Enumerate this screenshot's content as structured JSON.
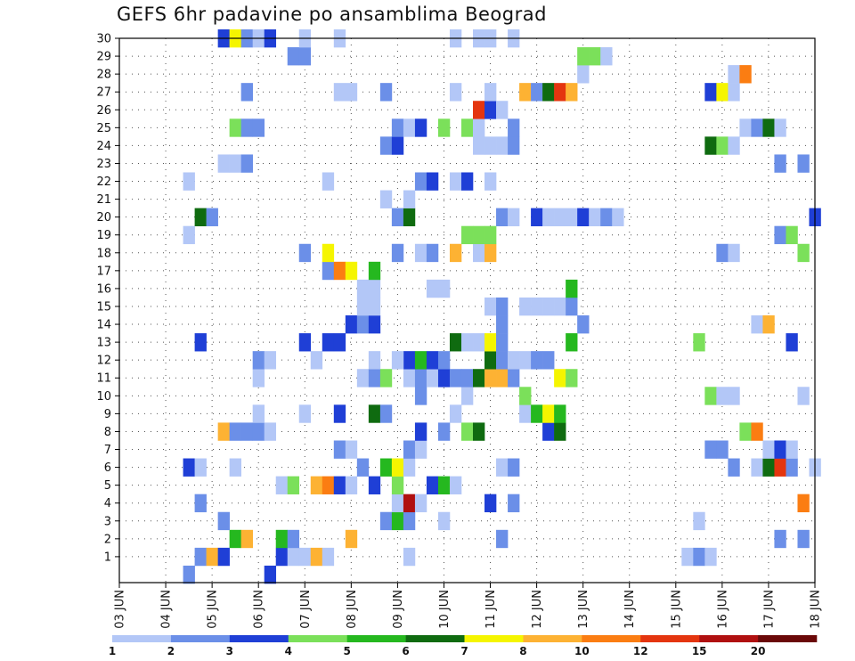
{
  "chart_data": {
    "type": "heatmap",
    "title": "GEFS 6hr padavine po ansamblima Beograd",
    "x_tick_labels": [
      "03 JUN",
      "04 JUN",
      "05 JUN",
      "06 JUN",
      "07 JUN",
      "08 JUN",
      "09 JUN",
      "10 JUN",
      "11 JUN",
      "12 JUN",
      "13 JUN",
      "14 JUN",
      "15 JUN",
      "16 JUN",
      "17 JUN",
      "18 JUN"
    ],
    "y_tick_labels": [
      "1",
      "2",
      "3",
      "4",
      "5",
      "6",
      "7",
      "8",
      "9",
      "10",
      "11",
      "12",
      "13",
      "14",
      "15",
      "16",
      "17",
      "18",
      "19",
      "20",
      "21",
      "22",
      "23",
      "24",
      "25",
      "26",
      "27",
      "28",
      "29",
      "30"
    ],
    "xlim": [
      0,
      60
    ],
    "ylim": [
      0,
      30
    ],
    "grid": true,
    "colorbar": {
      "labels": [
        "1",
        "2",
        "3",
        "4",
        "5",
        "6",
        "7",
        "8",
        "10",
        "12",
        "15",
        "20"
      ],
      "colors": [
        "#b3c7f7",
        "#6b8fe8",
        "#1f3fd6",
        "#7be05a",
        "#25b81f",
        "#0f6b10",
        "#f5f500",
        "#fdb233",
        "#fb7d12",
        "#e4350f",
        "#b01010",
        "#6a0808"
      ]
    },
    "cells_note": "x = 6-hour step from 03 JUN 00z, y = ensemble member, c = colorbar class index (0..11)",
    "cells": [
      {
        "x": 7,
        "y": 1,
        "c": 1
      },
      {
        "x": 8,
        "y": 1,
        "c": 7
      },
      {
        "x": 9,
        "y": 1,
        "c": 2
      },
      {
        "x": 14,
        "y": 1,
        "c": 2
      },
      {
        "x": 15,
        "y": 1,
        "c": 0
      },
      {
        "x": 16,
        "y": 1,
        "c": 0
      },
      {
        "x": 17,
        "y": 1,
        "c": 7
      },
      {
        "x": 18,
        "y": 1,
        "c": 0
      },
      {
        "x": 25,
        "y": 1,
        "c": 0
      },
      {
        "x": 49,
        "y": 1,
        "c": 0
      },
      {
        "x": 50,
        "y": 1,
        "c": 1
      },
      {
        "x": 51,
        "y": 1,
        "c": 0
      },
      {
        "x": 6,
        "y": 0,
        "c": 1
      },
      {
        "x": 13,
        "y": 0,
        "c": 2
      },
      {
        "x": 10,
        "y": 2,
        "c": 4
      },
      {
        "x": 11,
        "y": 2,
        "c": 7
      },
      {
        "x": 14,
        "y": 2,
        "c": 4
      },
      {
        "x": 15,
        "y": 2,
        "c": 1
      },
      {
        "x": 20,
        "y": 2,
        "c": 7
      },
      {
        "x": 33,
        "y": 2,
        "c": 1
      },
      {
        "x": 57,
        "y": 2,
        "c": 1
      },
      {
        "x": 59,
        "y": 2,
        "c": 1
      },
      {
        "x": 9,
        "y": 3,
        "c": 1
      },
      {
        "x": 23,
        "y": 3,
        "c": 1
      },
      {
        "x": 24,
        "y": 3,
        "c": 4
      },
      {
        "x": 25,
        "y": 3,
        "c": 1
      },
      {
        "x": 28,
        "y": 3,
        "c": 0
      },
      {
        "x": 50,
        "y": 3,
        "c": 0
      },
      {
        "x": 7,
        "y": 4,
        "c": 1
      },
      {
        "x": 24,
        "y": 4,
        "c": 0
      },
      {
        "x": 25,
        "y": 4,
        "c": 10
      },
      {
        "x": 26,
        "y": 4,
        "c": 0
      },
      {
        "x": 32,
        "y": 4,
        "c": 2
      },
      {
        "x": 34,
        "y": 4,
        "c": 1
      },
      {
        "x": 59,
        "y": 4,
        "c": 8
      },
      {
        "x": 14,
        "y": 5,
        "c": 0
      },
      {
        "x": 15,
        "y": 5,
        "c": 3
      },
      {
        "x": 17,
        "y": 5,
        "c": 7
      },
      {
        "x": 18,
        "y": 5,
        "c": 8
      },
      {
        "x": 19,
        "y": 5,
        "c": 2
      },
      {
        "x": 20,
        "y": 5,
        "c": 0
      },
      {
        "x": 22,
        "y": 5,
        "c": 2
      },
      {
        "x": 24,
        "y": 5,
        "c": 3
      },
      {
        "x": 27,
        "y": 5,
        "c": 2
      },
      {
        "x": 28,
        "y": 5,
        "c": 4
      },
      {
        "x": 29,
        "y": 5,
        "c": 0
      },
      {
        "x": 6,
        "y": 6,
        "c": 2
      },
      {
        "x": 7,
        "y": 6,
        "c": 0
      },
      {
        "x": 10,
        "y": 6,
        "c": 0
      },
      {
        "x": 21,
        "y": 6,
        "c": 1
      },
      {
        "x": 23,
        "y": 6,
        "c": 4
      },
      {
        "x": 24,
        "y": 6,
        "c": 6
      },
      {
        "x": 25,
        "y": 6,
        "c": 0
      },
      {
        "x": 33,
        "y": 6,
        "c": 0
      },
      {
        "x": 34,
        "y": 6,
        "c": 1
      },
      {
        "x": 53,
        "y": 6,
        "c": 1
      },
      {
        "x": 55,
        "y": 6,
        "c": 0
      },
      {
        "x": 56,
        "y": 6,
        "c": 5
      },
      {
        "x": 57,
        "y": 6,
        "c": 9
      },
      {
        "x": 58,
        "y": 6,
        "c": 1
      },
      {
        "x": 60,
        "y": 6,
        "c": 0
      },
      {
        "x": 19,
        "y": 7,
        "c": 1
      },
      {
        "x": 20,
        "y": 7,
        "c": 0
      },
      {
        "x": 25,
        "y": 7,
        "c": 1
      },
      {
        "x": 26,
        "y": 7,
        "c": 0
      },
      {
        "x": 51,
        "y": 7,
        "c": 1
      },
      {
        "x": 52,
        "y": 7,
        "c": 1
      },
      {
        "x": 56,
        "y": 7,
        "c": 0
      },
      {
        "x": 57,
        "y": 7,
        "c": 2
      },
      {
        "x": 58,
        "y": 7,
        "c": 0
      },
      {
        "x": 9,
        "y": 8,
        "c": 7
      },
      {
        "x": 10,
        "y": 8,
        "c": 1
      },
      {
        "x": 11,
        "y": 8,
        "c": 1
      },
      {
        "x": 12,
        "y": 8,
        "c": 1
      },
      {
        "x": 13,
        "y": 8,
        "c": 0
      },
      {
        "x": 26,
        "y": 8,
        "c": 2
      },
      {
        "x": 28,
        "y": 8,
        "c": 1
      },
      {
        "x": 30,
        "y": 8,
        "c": 3
      },
      {
        "x": 31,
        "y": 8,
        "c": 5
      },
      {
        "x": 37,
        "y": 8,
        "c": 2
      },
      {
        "x": 38,
        "y": 8,
        "c": 5
      },
      {
        "x": 54,
        "y": 8,
        "c": 3
      },
      {
        "x": 55,
        "y": 8,
        "c": 8
      },
      {
        "x": 12,
        "y": 9,
        "c": 0
      },
      {
        "x": 16,
        "y": 9,
        "c": 0
      },
      {
        "x": 19,
        "y": 9,
        "c": 2
      },
      {
        "x": 22,
        "y": 9,
        "c": 5
      },
      {
        "x": 23,
        "y": 9,
        "c": 1
      },
      {
        "x": 29,
        "y": 9,
        "c": 0
      },
      {
        "x": 35,
        "y": 9,
        "c": 0
      },
      {
        "x": 36,
        "y": 9,
        "c": 4
      },
      {
        "x": 37,
        "y": 9,
        "c": 6
      },
      {
        "x": 38,
        "y": 9,
        "c": 4
      },
      {
        "x": 26,
        "y": 10,
        "c": 1
      },
      {
        "x": 30,
        "y": 10,
        "c": 0
      },
      {
        "x": 35,
        "y": 10,
        "c": 3
      },
      {
        "x": 51,
        "y": 10,
        "c": 3
      },
      {
        "x": 52,
        "y": 10,
        "c": 0
      },
      {
        "x": 53,
        "y": 10,
        "c": 0
      },
      {
        "x": 59,
        "y": 10,
        "c": 0
      },
      {
        "x": 12,
        "y": 11,
        "c": 0
      },
      {
        "x": 21,
        "y": 11,
        "c": 0
      },
      {
        "x": 22,
        "y": 11,
        "c": 1
      },
      {
        "x": 23,
        "y": 11,
        "c": 3
      },
      {
        "x": 25,
        "y": 11,
        "c": 0
      },
      {
        "x": 26,
        "y": 11,
        "c": 1
      },
      {
        "x": 27,
        "y": 11,
        "c": 0
      },
      {
        "x": 28,
        "y": 11,
        "c": 2
      },
      {
        "x": 29,
        "y": 11,
        "c": 1
      },
      {
        "x": 30,
        "y": 11,
        "c": 1
      },
      {
        "x": 31,
        "y": 11,
        "c": 5
      },
      {
        "x": 32,
        "y": 11,
        "c": 7
      },
      {
        "x": 33,
        "y": 11,
        "c": 7
      },
      {
        "x": 34,
        "y": 11,
        "c": 1
      },
      {
        "x": 38,
        "y": 11,
        "c": 6
      },
      {
        "x": 39,
        "y": 11,
        "c": 3
      },
      {
        "x": 12,
        "y": 12,
        "c": 1
      },
      {
        "x": 13,
        "y": 12,
        "c": 0
      },
      {
        "x": 25,
        "y": 12,
        "c": 2
      },
      {
        "x": 26,
        "y": 12,
        "c": 4
      },
      {
        "x": 27,
        "y": 12,
        "c": 2
      },
      {
        "x": 28,
        "y": 12,
        "c": 1
      },
      {
        "x": 32,
        "y": 12,
        "c": 5
      },
      {
        "x": 33,
        "y": 12,
        "c": 1
      },
      {
        "x": 34,
        "y": 12,
        "c": 0
      },
      {
        "x": 35,
        "y": 12,
        "c": 0
      },
      {
        "x": 36,
        "y": 12,
        "c": 1
      },
      {
        "x": 37,
        "y": 12,
        "c": 1
      },
      {
        "x": 17,
        "y": 12,
        "c": 0
      },
      {
        "x": 22,
        "y": 12,
        "c": 0
      },
      {
        "x": 24,
        "y": 12,
        "c": 0
      },
      {
        "x": 7,
        "y": 13,
        "c": 2
      },
      {
        "x": 16,
        "y": 13,
        "c": 2
      },
      {
        "x": 18,
        "y": 13,
        "c": 2
      },
      {
        "x": 19,
        "y": 13,
        "c": 2
      },
      {
        "x": 29,
        "y": 13,
        "c": 5
      },
      {
        "x": 30,
        "y": 13,
        "c": 0
      },
      {
        "x": 31,
        "y": 13,
        "c": 0
      },
      {
        "x": 32,
        "y": 13,
        "c": 6
      },
      {
        "x": 33,
        "y": 13,
        "c": 1
      },
      {
        "x": 39,
        "y": 13,
        "c": 4
      },
      {
        "x": 50,
        "y": 13,
        "c": 3
      },
      {
        "x": 58,
        "y": 13,
        "c": 2
      },
      {
        "x": 20,
        "y": 14,
        "c": 2
      },
      {
        "x": 21,
        "y": 14,
        "c": 1
      },
      {
        "x": 22,
        "y": 14,
        "c": 2
      },
      {
        "x": 33,
        "y": 14,
        "c": 1
      },
      {
        "x": 40,
        "y": 14,
        "c": 1
      },
      {
        "x": 55,
        "y": 14,
        "c": 0
      },
      {
        "x": 56,
        "y": 14,
        "c": 7
      },
      {
        "x": 21,
        "y": 15,
        "c": 0
      },
      {
        "x": 22,
        "y": 15,
        "c": 0
      },
      {
        "x": 32,
        "y": 15,
        "c": 0
      },
      {
        "x": 33,
        "y": 15,
        "c": 1
      },
      {
        "x": 35,
        "y": 15,
        "c": 0
      },
      {
        "x": 36,
        "y": 15,
        "c": 0
      },
      {
        "x": 37,
        "y": 15,
        "c": 0
      },
      {
        "x": 38,
        "y": 15,
        "c": 0
      },
      {
        "x": 39,
        "y": 15,
        "c": 1
      },
      {
        "x": 21,
        "y": 16,
        "c": 0
      },
      {
        "x": 22,
        "y": 16,
        "c": 0
      },
      {
        "x": 27,
        "y": 16,
        "c": 0
      },
      {
        "x": 28,
        "y": 16,
        "c": 0
      },
      {
        "x": 39,
        "y": 16,
        "c": 4
      },
      {
        "x": 18,
        "y": 17,
        "c": 1
      },
      {
        "x": 19,
        "y": 17,
        "c": 8
      },
      {
        "x": 20,
        "y": 17,
        "c": 6
      },
      {
        "x": 22,
        "y": 17,
        "c": 4
      },
      {
        "x": 16,
        "y": 18,
        "c": 1
      },
      {
        "x": 18,
        "y": 18,
        "c": 6
      },
      {
        "x": 24,
        "y": 18,
        "c": 1
      },
      {
        "x": 26,
        "y": 18,
        "c": 0
      },
      {
        "x": 27,
        "y": 18,
        "c": 1
      },
      {
        "x": 29,
        "y": 18,
        "c": 7
      },
      {
        "x": 31,
        "y": 18,
        "c": 0
      },
      {
        "x": 32,
        "y": 18,
        "c": 7
      },
      {
        "x": 52,
        "y": 18,
        "c": 1
      },
      {
        "x": 53,
        "y": 18,
        "c": 0
      },
      {
        "x": 59,
        "y": 18,
        "c": 3
      },
      {
        "x": 6,
        "y": 19,
        "c": 0
      },
      {
        "x": 30,
        "y": 19,
        "c": 3
      },
      {
        "x": 31,
        "y": 19,
        "c": 3
      },
      {
        "x": 32,
        "y": 19,
        "c": 3
      },
      {
        "x": 57,
        "y": 19,
        "c": 1
      },
      {
        "x": 58,
        "y": 19,
        "c": 3
      },
      {
        "x": 7,
        "y": 20,
        "c": 5
      },
      {
        "x": 8,
        "y": 20,
        "c": 1
      },
      {
        "x": 24,
        "y": 20,
        "c": 1
      },
      {
        "x": 25,
        "y": 20,
        "c": 5
      },
      {
        "x": 33,
        "y": 20,
        "c": 1
      },
      {
        "x": 34,
        "y": 20,
        "c": 0
      },
      {
        "x": 36,
        "y": 20,
        "c": 2
      },
      {
        "x": 37,
        "y": 20,
        "c": 0
      },
      {
        "x": 38,
        "y": 20,
        "c": 0
      },
      {
        "x": 39,
        "y": 20,
        "c": 0
      },
      {
        "x": 40,
        "y": 20,
        "c": 2
      },
      {
        "x": 41,
        "y": 20,
        "c": 0
      },
      {
        "x": 42,
        "y": 20,
        "c": 1
      },
      {
        "x": 43,
        "y": 20,
        "c": 0
      },
      {
        "x": 60,
        "y": 20,
        "c": 2
      },
      {
        "x": 23,
        "y": 21,
        "c": 0
      },
      {
        "x": 25,
        "y": 21,
        "c": 0
      },
      {
        "x": 6,
        "y": 22,
        "c": 0
      },
      {
        "x": 18,
        "y": 22,
        "c": 0
      },
      {
        "x": 26,
        "y": 22,
        "c": 1
      },
      {
        "x": 27,
        "y": 22,
        "c": 2
      },
      {
        "x": 29,
        "y": 22,
        "c": 0
      },
      {
        "x": 30,
        "y": 22,
        "c": 2
      },
      {
        "x": 32,
        "y": 22,
        "c": 0
      },
      {
        "x": 9,
        "y": 23,
        "c": 0
      },
      {
        "x": 10,
        "y": 23,
        "c": 0
      },
      {
        "x": 11,
        "y": 23,
        "c": 1
      },
      {
        "x": 57,
        "y": 23,
        "c": 1
      },
      {
        "x": 59,
        "y": 23,
        "c": 1
      },
      {
        "x": 23,
        "y": 24,
        "c": 1
      },
      {
        "x": 24,
        "y": 24,
        "c": 2
      },
      {
        "x": 31,
        "y": 24,
        "c": 0
      },
      {
        "x": 32,
        "y": 24,
        "c": 0
      },
      {
        "x": 33,
        "y": 24,
        "c": 0
      },
      {
        "x": 34,
        "y": 24,
        "c": 1
      },
      {
        "x": 51,
        "y": 24,
        "c": 5
      },
      {
        "x": 52,
        "y": 24,
        "c": 3
      },
      {
        "x": 53,
        "y": 24,
        "c": 0
      },
      {
        "x": 10,
        "y": 25,
        "c": 3
      },
      {
        "x": 11,
        "y": 25,
        "c": 1
      },
      {
        "x": 12,
        "y": 25,
        "c": 1
      },
      {
        "x": 24,
        "y": 25,
        "c": 1
      },
      {
        "x": 25,
        "y": 25,
        "c": 0
      },
      {
        "x": 26,
        "y": 25,
        "c": 2
      },
      {
        "x": 28,
        "y": 25,
        "c": 3
      },
      {
        "x": 30,
        "y": 25,
        "c": 3
      },
      {
        "x": 31,
        "y": 25,
        "c": 0
      },
      {
        "x": 34,
        "y": 25,
        "c": 1
      },
      {
        "x": 54,
        "y": 25,
        "c": 0
      },
      {
        "x": 55,
        "y": 25,
        "c": 1
      },
      {
        "x": 56,
        "y": 25,
        "c": 5
      },
      {
        "x": 57,
        "y": 25,
        "c": 0
      },
      {
        "x": 31,
        "y": 26,
        "c": 9
      },
      {
        "x": 32,
        "y": 26,
        "c": 2
      },
      {
        "x": 33,
        "y": 26,
        "c": 0
      },
      {
        "x": 11,
        "y": 27,
        "c": 1
      },
      {
        "x": 19,
        "y": 27,
        "c": 0
      },
      {
        "x": 20,
        "y": 27,
        "c": 0
      },
      {
        "x": 23,
        "y": 27,
        "c": 1
      },
      {
        "x": 29,
        "y": 27,
        "c": 0
      },
      {
        "x": 32,
        "y": 27,
        "c": 0
      },
      {
        "x": 35,
        "y": 27,
        "c": 7
      },
      {
        "x": 36,
        "y": 27,
        "c": 1
      },
      {
        "x": 37,
        "y": 27,
        "c": 5
      },
      {
        "x": 38,
        "y": 27,
        "c": 9
      },
      {
        "x": 39,
        "y": 27,
        "c": 7
      },
      {
        "x": 51,
        "y": 27,
        "c": 2
      },
      {
        "x": 52,
        "y": 27,
        "c": 6
      },
      {
        "x": 53,
        "y": 27,
        "c": 0
      },
      {
        "x": 53,
        "y": 28,
        "c": 0
      },
      {
        "x": 54,
        "y": 28,
        "c": 8
      },
      {
        "x": 40,
        "y": 28,
        "c": 0
      },
      {
        "x": 15,
        "y": 29,
        "c": 1
      },
      {
        "x": 16,
        "y": 29,
        "c": 1
      },
      {
        "x": 40,
        "y": 29,
        "c": 3
      },
      {
        "x": 41,
        "y": 29,
        "c": 3
      },
      {
        "x": 42,
        "y": 29,
        "c": 0
      },
      {
        "x": 9,
        "y": 30,
        "c": 2
      },
      {
        "x": 10,
        "y": 30,
        "c": 6
      },
      {
        "x": 11,
        "y": 30,
        "c": 1
      },
      {
        "x": 12,
        "y": 30,
        "c": 0
      },
      {
        "x": 13,
        "y": 30,
        "c": 2
      },
      {
        "x": 16,
        "y": 30,
        "c": 0
      },
      {
        "x": 19,
        "y": 30,
        "c": 0
      },
      {
        "x": 29,
        "y": 30,
        "c": 0
      },
      {
        "x": 31,
        "y": 30,
        "c": 0
      },
      {
        "x": 32,
        "y": 30,
        "c": 0
      },
      {
        "x": 34,
        "y": 30,
        "c": 0
      }
    ]
  }
}
